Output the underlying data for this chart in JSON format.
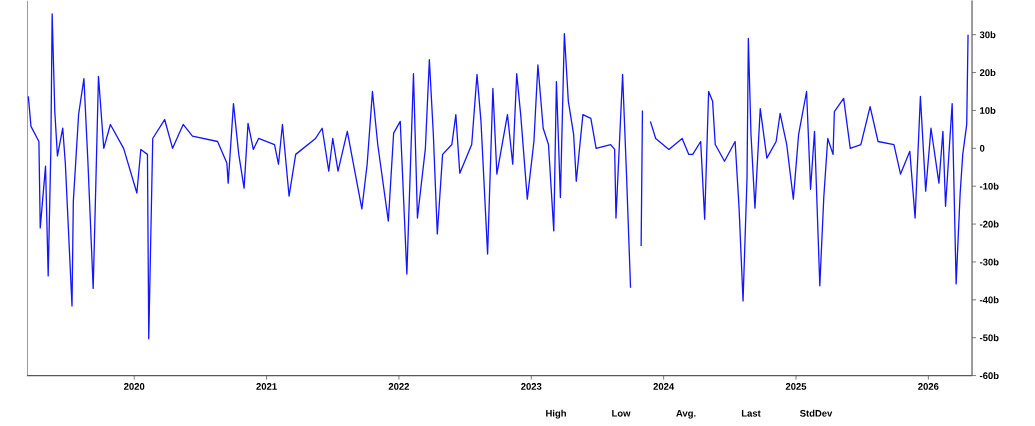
{
  "chart_data": {
    "type": "line",
    "color": "#1414ff",
    "marker": "none",
    "line_style": "solid",
    "xlim": [
      2019.19,
      2026.33
    ],
    "ylim": [
      -60,
      39
    ],
    "xticks": [
      2020,
      2021,
      2022,
      2023,
      2024,
      2025,
      2026
    ],
    "yticks": [
      {
        "value": -60,
        "label": "-60b"
      },
      {
        "value": -50,
        "label": "-50b"
      },
      {
        "value": -40,
        "label": "-40b"
      },
      {
        "value": -30,
        "label": "-30b"
      },
      {
        "value": -20,
        "label": "-20b"
      },
      {
        "value": -10,
        "label": "-10b"
      },
      0,
      {
        "value": 10,
        "label": "10b"
      },
      {
        "value": 20,
        "label": "20b"
      },
      {
        "value": 30,
        "label": "30b"
      }
    ],
    "annotations": [
      "High",
      "Low",
      "Avg.",
      "Last",
      "StdDev"
    ],
    "x": [
      2019.2,
      2019.22,
      2019.28,
      2019.29,
      2019.33,
      2019.35,
      2019.37,
      2019.38,
      2019.4,
      2019.42,
      2019.46,
      2019.48,
      2019.53,
      2019.54,
      2019.58,
      2019.62,
      2019.65,
      2019.69,
      2019.71,
      2019.73,
      2019.77,
      2019.82,
      2019.92,
      2020.02,
      2020.05,
      2020.1,
      2020.11,
      2020.14,
      2020.23,
      2020.29,
      2020.37,
      2020.44,
      2020.63,
      2020.7,
      2020.71,
      2020.75,
      2020.79,
      2020.83,
      2020.86,
      2020.9,
      2020.94,
      2021.06,
      2021.09,
      2021.12,
      2021.17,
      2021.22,
      2021.37,
      2021.42,
      2021.47,
      2021.5,
      2021.54,
      2021.61,
      2021.72,
      2021.76,
      2021.8,
      2021.84,
      2021.92,
      2021.96,
      2022.01,
      2022.06,
      2022.11,
      2022.14,
      2022.2,
      2022.23,
      2022.26,
      2022.29,
      2022.33,
      2022.4,
      2022.43,
      2022.46,
      2022.55,
      2022.59,
      2022.62,
      2022.67,
      2022.71,
      2022.74,
      2022.82,
      2022.86,
      2022.89,
      2022.92,
      2022.97,
      2023.02,
      2023.05,
      2023.09,
      2023.13,
      2023.17,
      2023.19,
      2023.22,
      2023.25,
      2023.28,
      2023.32,
      2023.34,
      2023.39,
      2023.45,
      2023.49,
      2023.6,
      2023.63,
      2023.64,
      2023.69,
      2023.72,
      2023.75,
      2023.79,
      2023.83,
      2023.84,
      2023.87,
      2023.9,
      2023.94,
      2024.04,
      2024.14,
      2024.19,
      2024.22,
      2024.28,
      2024.31,
      2024.34,
      2024.37,
      2024.39,
      2024.46,
      2024.54,
      2024.57,
      2024.6,
      2024.63,
      2024.64,
      2024.66,
      2024.69,
      2024.73,
      2024.78,
      2024.85,
      2024.88,
      2024.93,
      2024.98,
      2025.02,
      2025.08,
      2025.11,
      2025.14,
      2025.18,
      2025.21,
      2025.24,
      2025.28,
      2025.29,
      2025.36,
      2025.41,
      2025.49,
      2025.56,
      2025.62,
      2025.74,
      2025.79,
      2025.86,
      2025.9,
      2025.94,
      2025.98,
      2026.02,
      2026.08,
      2026.11,
      2026.13,
      2026.18,
      2026.21,
      2026.24,
      2026.26,
      2026.29,
      2026.3
    ],
    "values": [
      13.7,
      5.8,
      1.8,
      -21,
      -4.7,
      -33.7,
      -0.8,
      35.5,
      9.7,
      -2,
      5.3,
      -4.2,
      -41.6,
      -14,
      9,
      18.4,
      -3.4,
      -37,
      -9.5,
      19,
      0,
      6.3,
      0,
      -11.8,
      -0.3,
      -1.6,
      -50.3,
      2.6,
      7.6,
      0,
      6.3,
      3.2,
      1.8,
      -3.9,
      -9.2,
      11.8,
      -1.6,
      -10.5,
      6.6,
      -0.3,
      2.6,
      1,
      -4.2,
      6.3,
      -12.6,
      -1.6,
      2.6,
      5.3,
      -6,
      2.6,
      -6,
      4.5,
      -16,
      -4.2,
      15,
      1,
      -19.2,
      4,
      7.1,
      -33.2,
      19.7,
      -18.4,
      0,
      23.4,
      3.7,
      -22.6,
      -1.6,
      1,
      8.9,
      -6.6,
      1,
      19.5,
      7.1,
      -27.9,
      15.8,
      -6.8,
      8.9,
      -4.2,
      19.7,
      8.9,
      -13.4,
      1.8,
      22,
      5.3,
      1,
      -21.8,
      17.6,
      -13,
      30.3,
      12.4,
      3.7,
      -8.7,
      8.9,
      7.9,
      0,
      1,
      -0.3,
      -18.4,
      19.5,
      -7.4,
      -36.8,
      null,
      -25.8,
      10,
      null,
      7.1,
      2.6,
      -0.3,
      2.6,
      -1.6,
      -1.6,
      1.8,
      -18.7,
      15,
      12.4,
      1,
      -3.4,
      1.8,
      -15.8,
      -40.3,
      -7.9,
      29,
      3.7,
      -15.8,
      10.5,
      -2.6,
      1.8,
      9.2,
      1,
      -13.4,
      3.7,
      15,
      -10.8,
      4.5,
      -36.3,
      -13,
      2.6,
      -1.6,
      9.7,
      13.2,
      0,
      1,
      11,
      1.8,
      1,
      -6.8,
      -0.8,
      -18.4,
      13.7,
      -11.3,
      5.3,
      -9.2,
      4.5,
      -15.3,
      11.8,
      -35.8,
      -12.1,
      -1.6,
      6.3,
      30
    ]
  }
}
